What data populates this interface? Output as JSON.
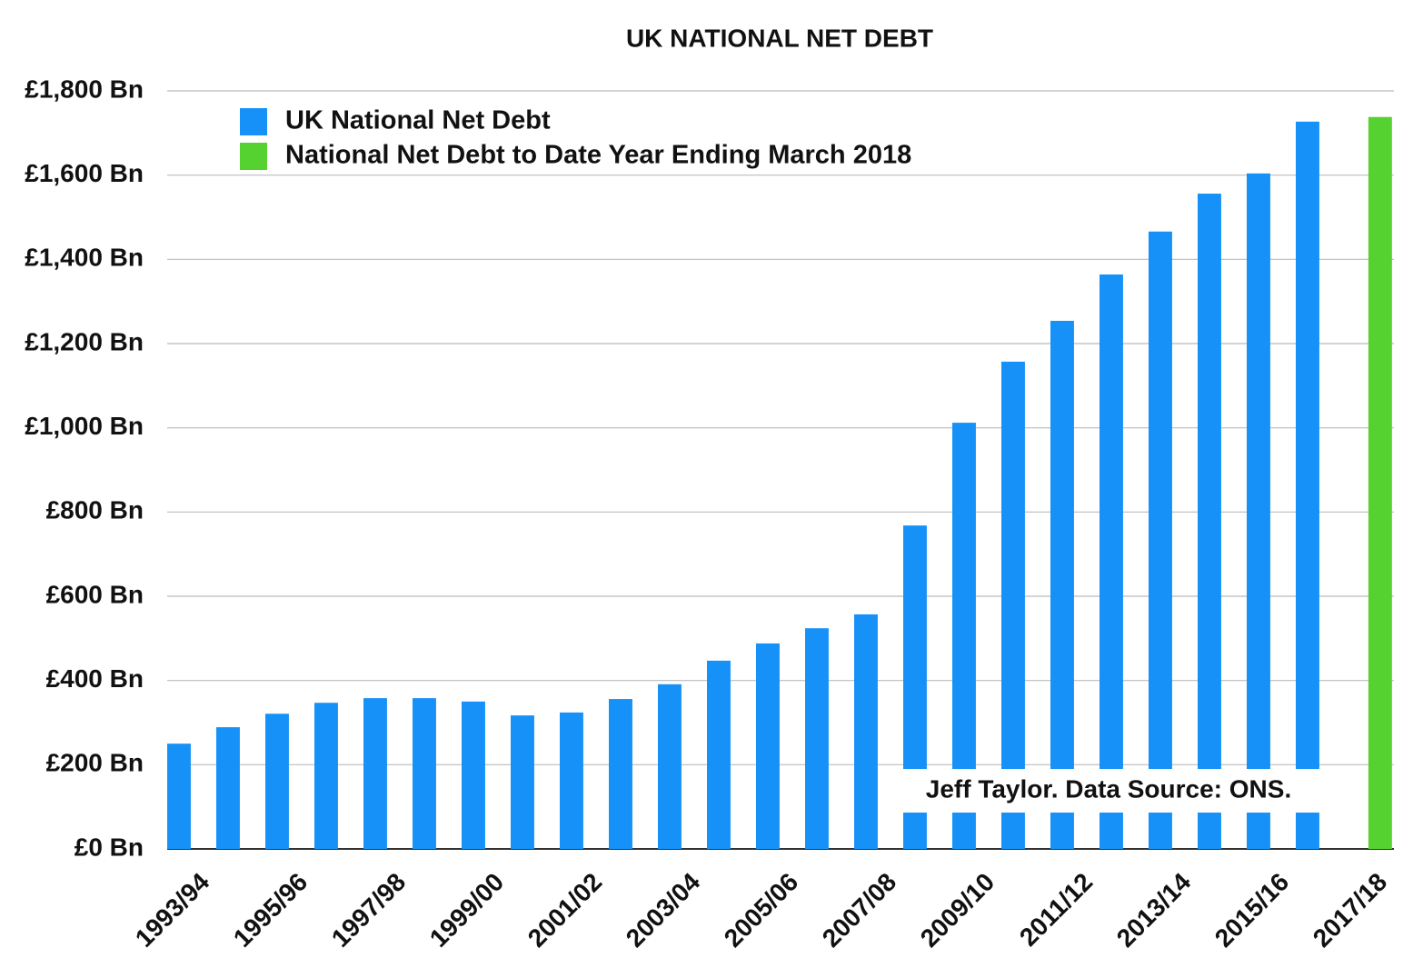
{
  "chart_data": {
    "type": "bar",
    "title": "UK NATIONAL NET DEBT",
    "categories": [
      "1993/94",
      null,
      "1995/96",
      null,
      "1997/98",
      null,
      "1999/00",
      null,
      "2001/02",
      null,
      "2003/04",
      null,
      "2005/06",
      null,
      "2007/08",
      null,
      "2009/10",
      null,
      "2011/12",
      null,
      "2013/14",
      null,
      "2015/16",
      null,
      "2017/18"
    ],
    "series": [
      {
        "name": "UK National Net Debt",
        "color": "#1591f8",
        "values": [
          250,
          289,
          321,
          347,
          358,
          358,
          350,
          317,
          324,
          356,
          391,
          447,
          488,
          524,
          557,
          768,
          1012,
          1157,
          1254,
          1364,
          1466,
          1556,
          1604,
          1727,
          null
        ]
      },
      {
        "name": "National Net Debt to Date Year Ending March 2018",
        "color": "#55d22f",
        "values": [
          null,
          null,
          null,
          null,
          null,
          null,
          null,
          null,
          null,
          null,
          null,
          null,
          null,
          null,
          null,
          null,
          null,
          null,
          null,
          null,
          null,
          null,
          null,
          null,
          1738
        ]
      }
    ],
    "ylim": [
      0,
      1800
    ],
    "yticks": [
      {
        "value": 0,
        "label": "£0 Bn"
      },
      {
        "value": 200,
        "label": "£200 Bn"
      },
      {
        "value": 400,
        "label": "£400 Bn"
      },
      {
        "value": 600,
        "label": "£600 Bn"
      },
      {
        "value": 800,
        "label": "£800 Bn"
      },
      {
        "value": 1000,
        "label": "£1,000 Bn"
      },
      {
        "value": 1200,
        "label": "£1,200 Bn"
      },
      {
        "value": 1400,
        "label": "£1,400 Bn"
      },
      {
        "value": 1600,
        "label": "£1,600 Bn"
      },
      {
        "value": 1800,
        "label": "£1,800 Bn"
      }
    ],
    "grid": true,
    "annotation": "Jeff Taylor. Data Source: ONS."
  }
}
